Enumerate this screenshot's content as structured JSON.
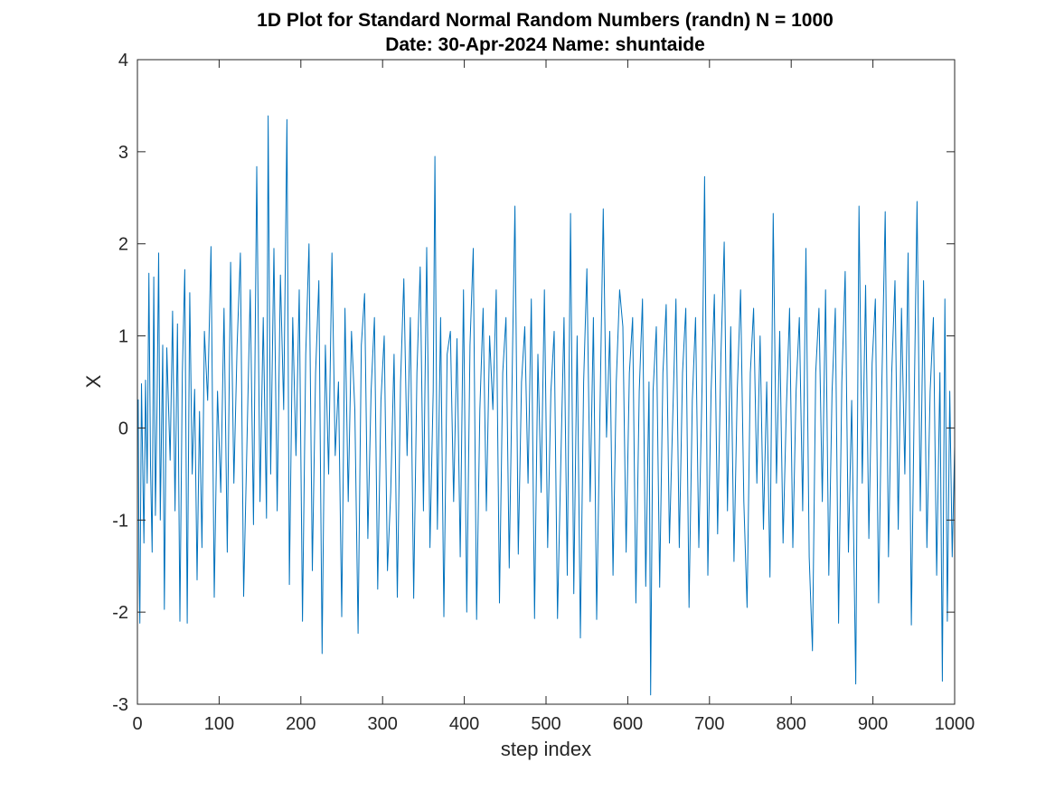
{
  "chart_data": {
    "type": "line",
    "title": "1D Plot for Standard Normal Random Numbers (randn) N = 1000",
    "subtitle": "Date: 30-Apr-2024 Name: shuntaide",
    "xlabel": "step index",
    "ylabel": "X",
    "xlim": [
      0,
      1000
    ],
    "ylim": [
      -3,
      4
    ],
    "xticks": [
      "0",
      "100",
      "200",
      "300",
      "400",
      "500",
      "600",
      "700",
      "800",
      "900",
      "1000"
    ],
    "yticks": [
      "-3",
      "-2",
      "-1",
      "0",
      "1",
      "2",
      "3",
      "4"
    ],
    "grid": false,
    "legend": "none",
    "line_color": "#0072bd",
    "series": [
      {
        "points": [
          [
            1,
            0.31
          ],
          [
            2,
            -1.52
          ],
          [
            3,
            -2.12
          ],
          [
            5,
            0.48
          ],
          [
            8,
            -1.25
          ],
          [
            10,
            0.52
          ],
          [
            12,
            -0.6
          ],
          [
            14,
            1.68
          ],
          [
            16,
            -0.4
          ],
          [
            18,
            -1.35
          ],
          [
            20,
            1.64
          ],
          [
            22,
            -0.95
          ],
          [
            24,
            0.25
          ],
          [
            26,
            1.9
          ],
          [
            28,
            -1.0
          ],
          [
            31,
            0.9
          ],
          [
            33,
            -1.97
          ],
          [
            36,
            0.87
          ],
          [
            40,
            -0.35
          ],
          [
            43,
            1.27
          ],
          [
            46,
            -0.9
          ],
          [
            49,
            1.13
          ],
          [
            52,
            -2.1
          ],
          [
            55,
            0.6
          ],
          [
            58,
            1.72
          ],
          [
            61,
            -2.12
          ],
          [
            64,
            1.47
          ],
          [
            67,
            -0.5
          ],
          [
            70,
            0.42
          ],
          [
            73,
            -1.65
          ],
          [
            76,
            0.18
          ],
          [
            79,
            -1.3
          ],
          [
            82,
            1.05
          ],
          [
            86,
            0.3
          ],
          [
            90,
            1.97
          ],
          [
            94,
            -1.84
          ],
          [
            98,
            0.4
          ],
          [
            102,
            -0.7
          ],
          [
            106,
            1.3
          ],
          [
            110,
            -1.35
          ],
          [
            114,
            1.8
          ],
          [
            118,
            -0.6
          ],
          [
            122,
            0.9
          ],
          [
            126,
            1.9
          ],
          [
            130,
            -1.83
          ],
          [
            134,
            -0.2
          ],
          [
            138,
            1.5
          ],
          [
            142,
            -1.05
          ],
          [
            146,
            2.84
          ],
          [
            150,
            -0.8
          ],
          [
            154,
            1.2
          ],
          [
            158,
            -0.98
          ],
          [
            160,
            3.39
          ],
          [
            163,
            -0.5
          ],
          [
            167,
            1.95
          ],
          [
            171,
            -0.9
          ],
          [
            175,
            1.66
          ],
          [
            179,
            0.2
          ],
          [
            183,
            3.35
          ],
          [
            186,
            -1.7
          ],
          [
            190,
            1.2
          ],
          [
            194,
            -0.3
          ],
          [
            198,
            1.5
          ],
          [
            202,
            -2.1
          ],
          [
            206,
            0.8
          ],
          [
            210,
            2.0
          ],
          [
            214,
            -1.55
          ],
          [
            218,
            0.6
          ],
          [
            222,
            1.6
          ],
          [
            226,
            -2.45
          ],
          [
            230,
            0.9
          ],
          [
            234,
            -0.5
          ],
          [
            238,
            1.9
          ],
          [
            242,
            -0.3
          ],
          [
            246,
            0.5
          ],
          [
            250,
            -2.05
          ],
          [
            254,
            1.3
          ],
          [
            258,
            -0.8
          ],
          [
            262,
            1.05
          ],
          [
            266,
            0.2
          ],
          [
            270,
            -2.23
          ],
          [
            274,
            0.9
          ],
          [
            278,
            1.46
          ],
          [
            282,
            -1.2
          ],
          [
            286,
            0.4
          ],
          [
            290,
            1.2
          ],
          [
            294,
            -1.75
          ],
          [
            298,
            0.3
          ],
          [
            302,
            1.0
          ],
          [
            306,
            -1.55
          ],
          [
            310,
            -0.7
          ],
          [
            314,
            0.8
          ],
          [
            318,
            -1.84
          ],
          [
            322,
            0.5
          ],
          [
            326,
            1.62
          ],
          [
            330,
            -0.3
          ],
          [
            334,
            1.2
          ],
          [
            338,
            -1.85
          ],
          [
            342,
            0.6
          ],
          [
            346,
            1.75
          ],
          [
            350,
            -0.9
          ],
          [
            354,
            1.96
          ],
          [
            358,
            -1.3
          ],
          [
            362,
            0.4
          ],
          [
            364,
            2.95
          ],
          [
            367,
            -1.1
          ],
          [
            371,
            1.2
          ],
          [
            375,
            -2.05
          ],
          [
            379,
            0.8
          ],
          [
            383,
            1.05
          ],
          [
            387,
            -0.8
          ],
          [
            391,
            0.97
          ],
          [
            395,
            -1.4
          ],
          [
            399,
            1.5
          ],
          [
            403,
            -2.0
          ],
          [
            407,
            0.9
          ],
          [
            411,
            1.95
          ],
          [
            415,
            -2.08
          ],
          [
            419,
            0.2
          ],
          [
            423,
            1.3
          ],
          [
            427,
            -0.9
          ],
          [
            431,
            1.0
          ],
          [
            435,
            0.2
          ],
          [
            439,
            1.5
          ],
          [
            443,
            -1.9
          ],
          [
            447,
            0.6
          ],
          [
            451,
            1.2
          ],
          [
            455,
            -1.52
          ],
          [
            459,
            0.8
          ],
          [
            462,
            2.41
          ],
          [
            466,
            -1.37
          ],
          [
            470,
            0.5
          ],
          [
            474,
            1.1
          ],
          [
            478,
            -0.6
          ],
          [
            482,
            1.4
          ],
          [
            486,
            -2.07
          ],
          [
            490,
            0.8
          ],
          [
            494,
            -0.7
          ],
          [
            498,
            1.5
          ],
          [
            502,
            -1.3
          ],
          [
            506,
            0.4
          ],
          [
            510,
            1.05
          ],
          [
            514,
            -2.07
          ],
          [
            518,
            -0.4
          ],
          [
            522,
            1.2
          ],
          [
            526,
            -1.6
          ],
          [
            530,
            2.33
          ],
          [
            534,
            -1.8
          ],
          [
            538,
            1.0
          ],
          [
            542,
            -2.28
          ],
          [
            546,
            0.5
          ],
          [
            550,
            1.73
          ],
          [
            554,
            -0.8
          ],
          [
            558,
            1.2
          ],
          [
            562,
            -2.08
          ],
          [
            566,
            0.2
          ],
          [
            570,
            2.38
          ],
          [
            574,
            -0.1
          ],
          [
            578,
            1.05
          ],
          [
            582,
            -1.6
          ],
          [
            586,
            0.5
          ],
          [
            590,
            1.5
          ],
          [
            594,
            1.1
          ],
          [
            598,
            -1.35
          ],
          [
            602,
            0.6
          ],
          [
            606,
            1.2
          ],
          [
            610,
            -1.9
          ],
          [
            614,
            0.4
          ],
          [
            618,
            1.4
          ],
          [
            622,
            -1.72
          ],
          [
            626,
            0.5
          ],
          [
            628,
            -2.9
          ],
          [
            631,
            0.4
          ],
          [
            635,
            1.1
          ],
          [
            639,
            -1.73
          ],
          [
            643,
            0.6
          ],
          [
            647,
            1.34
          ],
          [
            651,
            -1.25
          ],
          [
            655,
            0.1
          ],
          [
            659,
            1.4
          ],
          [
            663,
            -1.3
          ],
          [
            667,
            0.6
          ],
          [
            671,
            1.3
          ],
          [
            675,
            -1.95
          ],
          [
            679,
            0.3
          ],
          [
            683,
            1.2
          ],
          [
            687,
            -1.3
          ],
          [
            691,
            0.5
          ],
          [
            694,
            2.73
          ],
          [
            698,
            -1.6
          ],
          [
            702,
            0.4
          ],
          [
            706,
            1.45
          ],
          [
            710,
            -1.15
          ],
          [
            714,
            0.8
          ],
          [
            718,
            2.02
          ],
          [
            722,
            -0.9
          ],
          [
            726,
            1.1
          ],
          [
            730,
            -1.45
          ],
          [
            734,
            0.4
          ],
          [
            738,
            1.5
          ],
          [
            742,
            -0.8
          ],
          [
            746,
            -1.95
          ],
          [
            750,
            0.6
          ],
          [
            754,
            1.3
          ],
          [
            758,
            -0.6
          ],
          [
            762,
            1.0
          ],
          [
            766,
            -1.1
          ],
          [
            770,
            0.5
          ],
          [
            774,
            -1.62
          ],
          [
            778,
            2.33
          ],
          [
            782,
            -0.6
          ],
          [
            786,
            1.05
          ],
          [
            790,
            -1.25
          ],
          [
            794,
            0.2
          ],
          [
            798,
            1.3
          ],
          [
            802,
            -1.3
          ],
          [
            806,
            0.4
          ],
          [
            810,
            1.2
          ],
          [
            814,
            -0.9
          ],
          [
            818,
            1.95
          ],
          [
            822,
            -1.4
          ],
          [
            826,
            -2.42
          ],
          [
            830,
            0.6
          ],
          [
            834,
            1.3
          ],
          [
            838,
            -0.8
          ],
          [
            842,
            1.5
          ],
          [
            846,
            -1.6
          ],
          [
            850,
            0.4
          ],
          [
            854,
            1.3
          ],
          [
            858,
            -2.12
          ],
          [
            862,
            0.5
          ],
          [
            866,
            1.7
          ],
          [
            870,
            -1.35
          ],
          [
            874,
            0.3
          ],
          [
            879,
            -2.78
          ],
          [
            883,
            2.41
          ],
          [
            887,
            -0.6
          ],
          [
            891,
            1.55
          ],
          [
            895,
            -1.2
          ],
          [
            899,
            0.7
          ],
          [
            903,
            1.4
          ],
          [
            907,
            -1.9
          ],
          [
            911,
            0.5
          ],
          [
            915,
            2.35
          ],
          [
            919,
            -1.4
          ],
          [
            923,
            0.6
          ],
          [
            927,
            1.6
          ],
          [
            931,
            -1.1
          ],
          [
            935,
            1.3
          ],
          [
            939,
            -0.5
          ],
          [
            943,
            1.9
          ],
          [
            947,
            -2.14
          ],
          [
            951,
            0.6
          ],
          [
            954,
            2.46
          ],
          [
            958,
            -0.9
          ],
          [
            962,
            1.6
          ],
          [
            966,
            -1.3
          ],
          [
            970,
            0.4
          ],
          [
            974,
            1.2
          ],
          [
            978,
            -1.6
          ],
          [
            982,
            0.6
          ],
          [
            985,
            -2.75
          ],
          [
            988,
            1.4
          ],
          [
            991,
            -2.1
          ],
          [
            994,
            0.4
          ],
          [
            997,
            -1.4
          ],
          [
            1000,
            -0.2
          ]
        ]
      }
    ]
  }
}
